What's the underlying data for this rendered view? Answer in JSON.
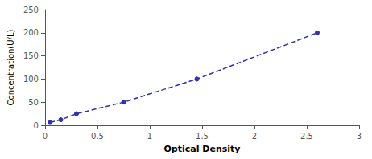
{
  "chart_data": {
    "type": "line",
    "x": [
      0.047,
      0.15,
      0.3,
      0.75,
      1.45,
      2.6
    ],
    "values": [
      6,
      12,
      25,
      50,
      100,
      200
    ],
    "color": "#3333aa",
    "marker": "o",
    "line_style": "dashed",
    "xlabel": "Optical Density",
    "ylabel": "Concentration(U/L)",
    "xlim": [
      0,
      3
    ],
    "ylim": [
      0,
      250
    ],
    "xticks": [
      0,
      0.5,
      1,
      1.5,
      2,
      2.5,
      3
    ],
    "yticks": [
      0,
      50,
      100,
      150,
      200,
      250
    ],
    "grid": false
  }
}
